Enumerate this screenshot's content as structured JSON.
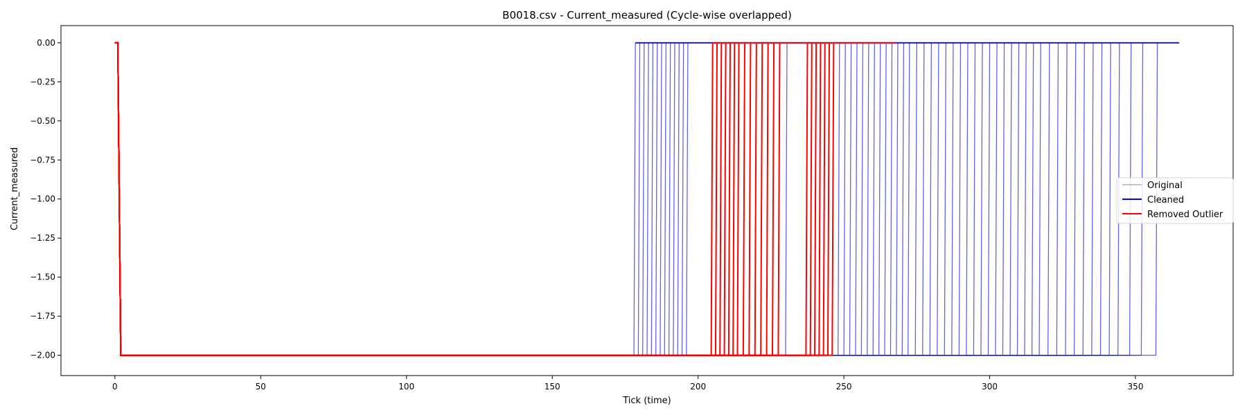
{
  "chart_data": {
    "type": "line",
    "title": "B0018.csv - Current_measured (Cycle-wise overlapped)",
    "xlabel": "Tick (time)",
    "ylabel": "Current_measured",
    "xlim": [
      -18.5,
      383.5
    ],
    "ylim": [
      -2.13,
      0.11
    ],
    "xticks": [
      0,
      50,
      100,
      150,
      200,
      250,
      300,
      350
    ],
    "xtick_labels": [
      "0",
      "50",
      "100",
      "150",
      "200",
      "250",
      "300",
      "350"
    ],
    "yticks": [
      0.0,
      -0.25,
      -0.5,
      -0.75,
      -1.0,
      -1.25,
      -1.5,
      -1.75,
      -2.0
    ],
    "ytick_labels": [
      "0.00",
      "−0.25",
      "−0.50",
      "−0.75",
      "−1.00",
      "−1.25",
      "−1.50",
      "−1.75",
      "−2.00"
    ],
    "grid": false,
    "legend_position": "center-right",
    "discharge_level": -2.0,
    "rest_level": 0.0,
    "series": [
      {
        "name": "Original",
        "color": "#b0b0b0",
        "cycle_end_ticks": [
          178,
          179.5,
          181,
          182.5,
          184,
          185.5,
          187,
          188.5,
          190,
          191.5,
          193,
          194.5,
          196,
          204.5,
          206,
          207.5,
          209,
          210.5,
          212,
          213.5,
          215.5,
          217.5,
          219.5,
          221.5,
          223.5,
          225.5,
          227.5,
          230,
          237,
          238.5,
          240,
          241.5,
          243,
          244.5,
          246,
          248,
          250,
          252,
          254,
          256,
          258,
          260,
          262,
          264,
          266,
          268,
          270,
          272,
          274.5,
          277,
          279.5,
          282,
          284.5,
          287,
          289.5,
          292,
          294.5,
          297,
          299.5,
          302,
          304.5,
          307,
          309.5,
          312,
          314.5,
          317,
          320,
          323,
          326,
          329,
          332,
          335,
          338,
          341,
          344,
          348,
          352,
          357
        ]
      },
      {
        "name": "Cleaned",
        "color": "#0000ff",
        "cycle_end_ticks": [
          178,
          179.5,
          181,
          182.5,
          184,
          185.5,
          187,
          188.5,
          190,
          191.5,
          193,
          194.5,
          196,
          230,
          248,
          250,
          252,
          254,
          256,
          258,
          260,
          262,
          264,
          266,
          268,
          270,
          272,
          274.5,
          277,
          279.5,
          282,
          284.5,
          287,
          289.5,
          292,
          294.5,
          297,
          299.5,
          302,
          304.5,
          307,
          309.5,
          312,
          314.5,
          317,
          320,
          323,
          326,
          329,
          332,
          335,
          338,
          341,
          344,
          348,
          352,
          357
        ],
        "rest_end_tick": 365
      },
      {
        "name": "Removed Outlier",
        "color": "#ff0000",
        "cycle_end_ticks": [
          204.5,
          206,
          207.5,
          209,
          210.5,
          212,
          213.5,
          215.5,
          217.5,
          219.5,
          221.5,
          223.5,
          225.5,
          227.5,
          237,
          238.5,
          240,
          241.5,
          243,
          244.5,
          246
        ],
        "rest_end_tick": 268
      }
    ]
  }
}
